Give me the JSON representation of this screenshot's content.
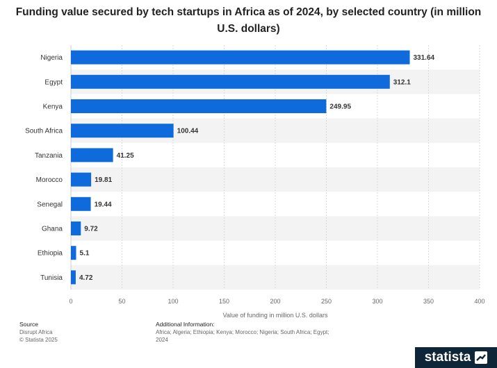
{
  "title": "Funding value secured by tech startups in Africa as of 2024, by selected country (in million U.S. dollars)",
  "chart_data": {
    "type": "bar",
    "orientation": "horizontal",
    "categories": [
      "Nigeria",
      "Egypt",
      "Kenya",
      "South Africa",
      "Tanzania",
      "Morocco",
      "Senegal",
      "Ghana",
      "Ethiopia",
      "Tunisia"
    ],
    "values": [
      331.64,
      312.1,
      249.95,
      100.44,
      41.25,
      19.81,
      19.44,
      9.72,
      5.1,
      4.72
    ],
    "value_labels": [
      "331.64",
      "312.1",
      "249.95",
      "100.44",
      "41.25",
      "19.81",
      "19.44",
      "9.72",
      "5.1",
      "4.72"
    ],
    "xlabel": "Value of funding in million U.S. dollars",
    "ylabel": "",
    "xlim": [
      0,
      400
    ],
    "ticks": [
      "0",
      "50",
      "100",
      "150",
      "200",
      "250",
      "300",
      "350",
      "400"
    ],
    "bar_color": "#0f6bdc",
    "grid": true
  },
  "footer": {
    "source_heading": "Source",
    "source_lines": [
      "Disrupt Africa",
      "© Statista 2025"
    ],
    "info_heading": "Additional Information:",
    "info_lines": [
      "Africa; Algeria; Ethiopia; Kenya; Morocco; Nigeria; South Africa; Egypt;",
      "2024"
    ]
  },
  "brand": {
    "name": "statista",
    "icon": "statista-logo-icon",
    "background": "#0f2538"
  }
}
